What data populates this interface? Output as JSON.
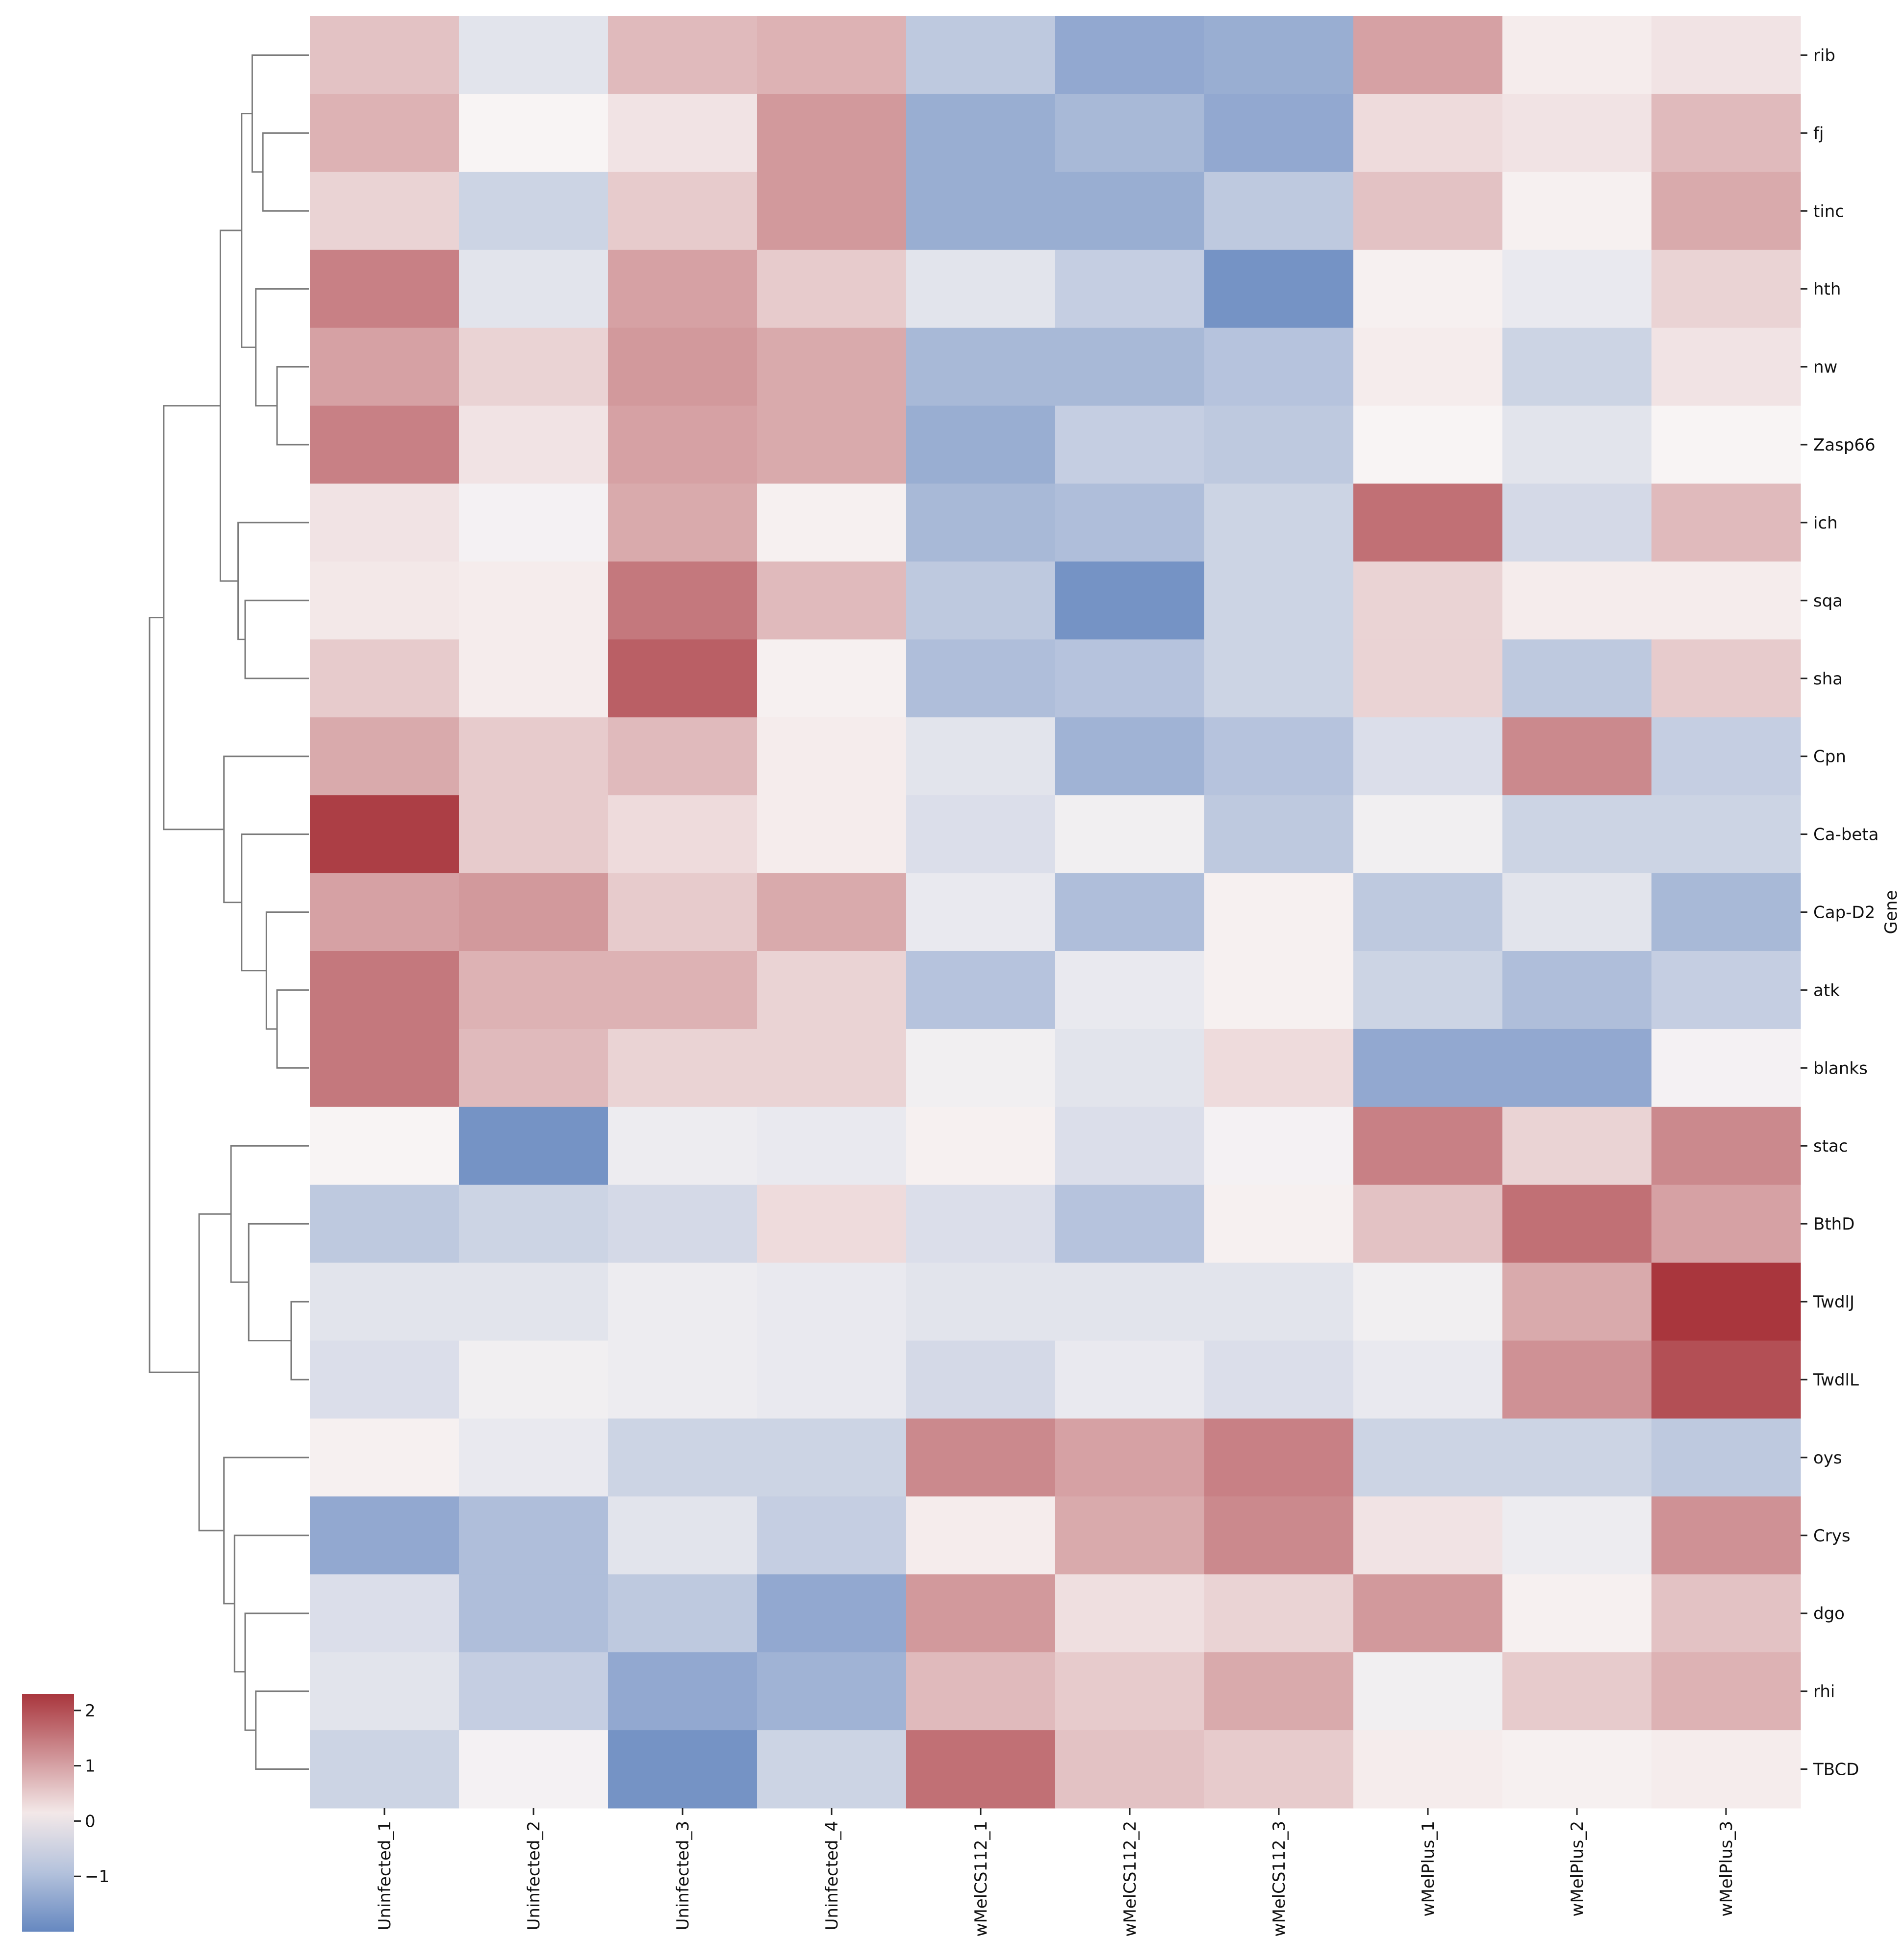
{
  "chart_data": {
    "type": "heatmap",
    "title": "",
    "xlabel": "",
    "ylabel": "Gene",
    "columns": [
      "Uninfected_1",
      "Uninfected_2",
      "Uninfected_3",
      "Uninfected_4",
      "wMelCS112_1",
      "wMelCS112_2",
      "wMelCS112_3",
      "wMelPlus_1",
      "wMelPlus_2",
      "wMelPlus_3"
    ],
    "rows": [
      "rib",
      "fj",
      "tinc",
      "hth",
      "nw",
      "Zasp66",
      "ich",
      "sqa",
      "sha",
      "Cpn",
      "Ca-beta",
      "Cap-D2",
      "atk",
      "blanks",
      "stac",
      "BthD",
      "TwdlJ",
      "TwdlL",
      "oys",
      "Crys",
      "dgo",
      "rhi",
      "TBCD"
    ],
    "values": [
      [
        0.6,
        -0.3,
        0.7,
        0.8,
        -0.8,
        -1.4,
        -1.3,
        1.0,
        0.1,
        0.2
      ],
      [
        0.8,
        0.0,
        0.2,
        1.1,
        -1.3,
        -1.1,
        -1.4,
        0.3,
        0.2,
        0.7
      ],
      [
        0.4,
        -0.6,
        0.5,
        1.1,
        -1.3,
        -1.3,
        -0.8,
        0.6,
        0.05,
        0.9
      ],
      [
        1.4,
        -0.3,
        1.0,
        0.5,
        -0.3,
        -0.7,
        -1.8,
        0.05,
        -0.2,
        0.4
      ],
      [
        1.0,
        0.4,
        1.1,
        0.9,
        -1.1,
        -1.1,
        -0.9,
        0.1,
        -0.6,
        0.2
      ],
      [
        1.4,
        0.2,
        1.0,
        0.9,
        -1.3,
        -0.7,
        -0.8,
        0.0,
        -0.3,
        0.0
      ],
      [
        0.2,
        -0.05,
        0.9,
        0.05,
        -1.1,
        -1.0,
        -0.6,
        1.6,
        -0.5,
        0.7
      ],
      [
        0.15,
        0.1,
        1.5,
        0.7,
        -0.8,
        -1.8,
        -0.6,
        0.4,
        0.1,
        0.1
      ],
      [
        0.5,
        0.1,
        1.8,
        0.05,
        -1.0,
        -0.9,
        -0.6,
        0.4,
        -0.8,
        0.5
      ],
      [
        0.9,
        0.5,
        0.7,
        0.1,
        -0.3,
        -1.2,
        -0.9,
        -0.4,
        1.3,
        -0.7
      ],
      [
        2.2,
        0.5,
        0.3,
        0.1,
        -0.4,
        -0.1,
        -0.8,
        -0.1,
        -0.6,
        -0.6
      ],
      [
        1.0,
        1.1,
        0.5,
        0.9,
        -0.2,
        -1.0,
        0.05,
        -0.8,
        -0.3,
        -1.1
      ],
      [
        1.5,
        0.8,
        0.8,
        0.4,
        -0.9,
        -0.2,
        0.05,
        -0.6,
        -1.0,
        -0.7
      ],
      [
        1.5,
        0.7,
        0.4,
        0.4,
        -0.1,
        -0.3,
        0.3,
        -1.4,
        -1.4,
        -0.05
      ],
      [
        0.0,
        -1.8,
        -0.15,
        -0.2,
        0.05,
        -0.4,
        -0.05,
        1.4,
        0.4,
        1.3
      ],
      [
        -0.8,
        -0.6,
        -0.5,
        0.3,
        -0.4,
        -0.9,
        0.05,
        0.6,
        1.6,
        1.0
      ],
      [
        -0.3,
        -0.3,
        -0.15,
        -0.2,
        -0.3,
        -0.3,
        -0.3,
        -0.1,
        0.9,
        2.3
      ],
      [
        -0.4,
        -0.1,
        -0.15,
        -0.2,
        -0.5,
        -0.2,
        -0.4,
        -0.2,
        1.2,
        2.0
      ],
      [
        0.05,
        -0.2,
        -0.6,
        -0.6,
        1.3,
        1.0,
        1.4,
        -0.6,
        -0.6,
        -0.8
      ],
      [
        -1.4,
        -1.0,
        -0.3,
        -0.7,
        0.1,
        0.9,
        1.3,
        0.2,
        -0.15,
        1.2
      ],
      [
        -0.4,
        -1.0,
        -0.8,
        -1.4,
        1.1,
        0.25,
        0.4,
        1.1,
        0.05,
        0.6
      ],
      [
        -0.3,
        -0.7,
        -1.4,
        -1.2,
        0.7,
        0.5,
        0.9,
        -0.1,
        0.5,
        0.8
      ],
      [
        -0.6,
        -0.05,
        -1.8,
        -0.6,
        1.6,
        0.6,
        0.5,
        0.1,
        0.05,
        0.1
      ]
    ],
    "colormap": {
      "name": "vlag",
      "min": -2.0,
      "max": 2.3,
      "low": "#6688c0",
      "mid": "#f8f4f4",
      "high": "#a9363d"
    },
    "colorbar": {
      "ticks": [
        2,
        1,
        0,
        -1
      ],
      "tick_labels": [
        "2",
        "1",
        "0",
        "−1"
      ],
      "placement": "bottom-left"
    },
    "row_dendrogram": {
      "placement": "left",
      "leaf_order": [
        "rib",
        "fj",
        "tinc",
        "hth",
        "nw",
        "Zasp66",
        "ich",
        "sqa",
        "sha",
        "Cpn",
        "Ca-beta",
        "Cap-D2",
        "atk",
        "blanks",
        "stac",
        "BthD",
        "TwdlJ",
        "TwdlL",
        "oys",
        "Crys",
        "dgo",
        "rhi",
        "TBCD"
      ],
      "merges": [
        {
          "a": 1,
          "b": 2,
          "height": 0.65
        },
        {
          "a": 0,
          "b": "m0",
          "height": 0.8
        },
        {
          "a": 4,
          "b": 5,
          "height": 0.45
        },
        {
          "a": 3,
          "b": "m2",
          "height": 0.75
        },
        {
          "a": "m1",
          "b": "m3",
          "height": 0.95
        },
        {
          "a": 7,
          "b": 8,
          "height": 0.9
        },
        {
          "a": 6,
          "b": "m5",
          "height": 1.0
        },
        {
          "a": "m4",
          "b": "m6",
          "height": 1.25
        },
        {
          "a": 12,
          "b": 13,
          "height": 0.45
        },
        {
          "a": 11,
          "b": "m8",
          "height": 0.6
        },
        {
          "a": 10,
          "b": "m9",
          "height": 0.95
        },
        {
          "a": 9,
          "b": "m10",
          "height": 1.2
        },
        {
          "a": "m7",
          "b": "m11",
          "height": 2.05
        },
        {
          "a": 16,
          "b": 17,
          "height": 0.25
        },
        {
          "a": 15,
          "b": "m13",
          "height": 0.85
        },
        {
          "a": 14,
          "b": "m14",
          "height": 1.1
        },
        {
          "a": 21,
          "b": 22,
          "height": 0.75
        },
        {
          "a": 20,
          "b": "m16",
          "height": 0.9
        },
        {
          "a": 19,
          "b": "m17",
          "height": 1.05
        },
        {
          "a": 18,
          "b": "m18",
          "height": 1.2
        },
        {
          "a": "m15",
          "b": "m19",
          "height": 1.55
        },
        {
          "a": "m12",
          "b": "m20",
          "height": 2.25
        }
      ]
    }
  }
}
